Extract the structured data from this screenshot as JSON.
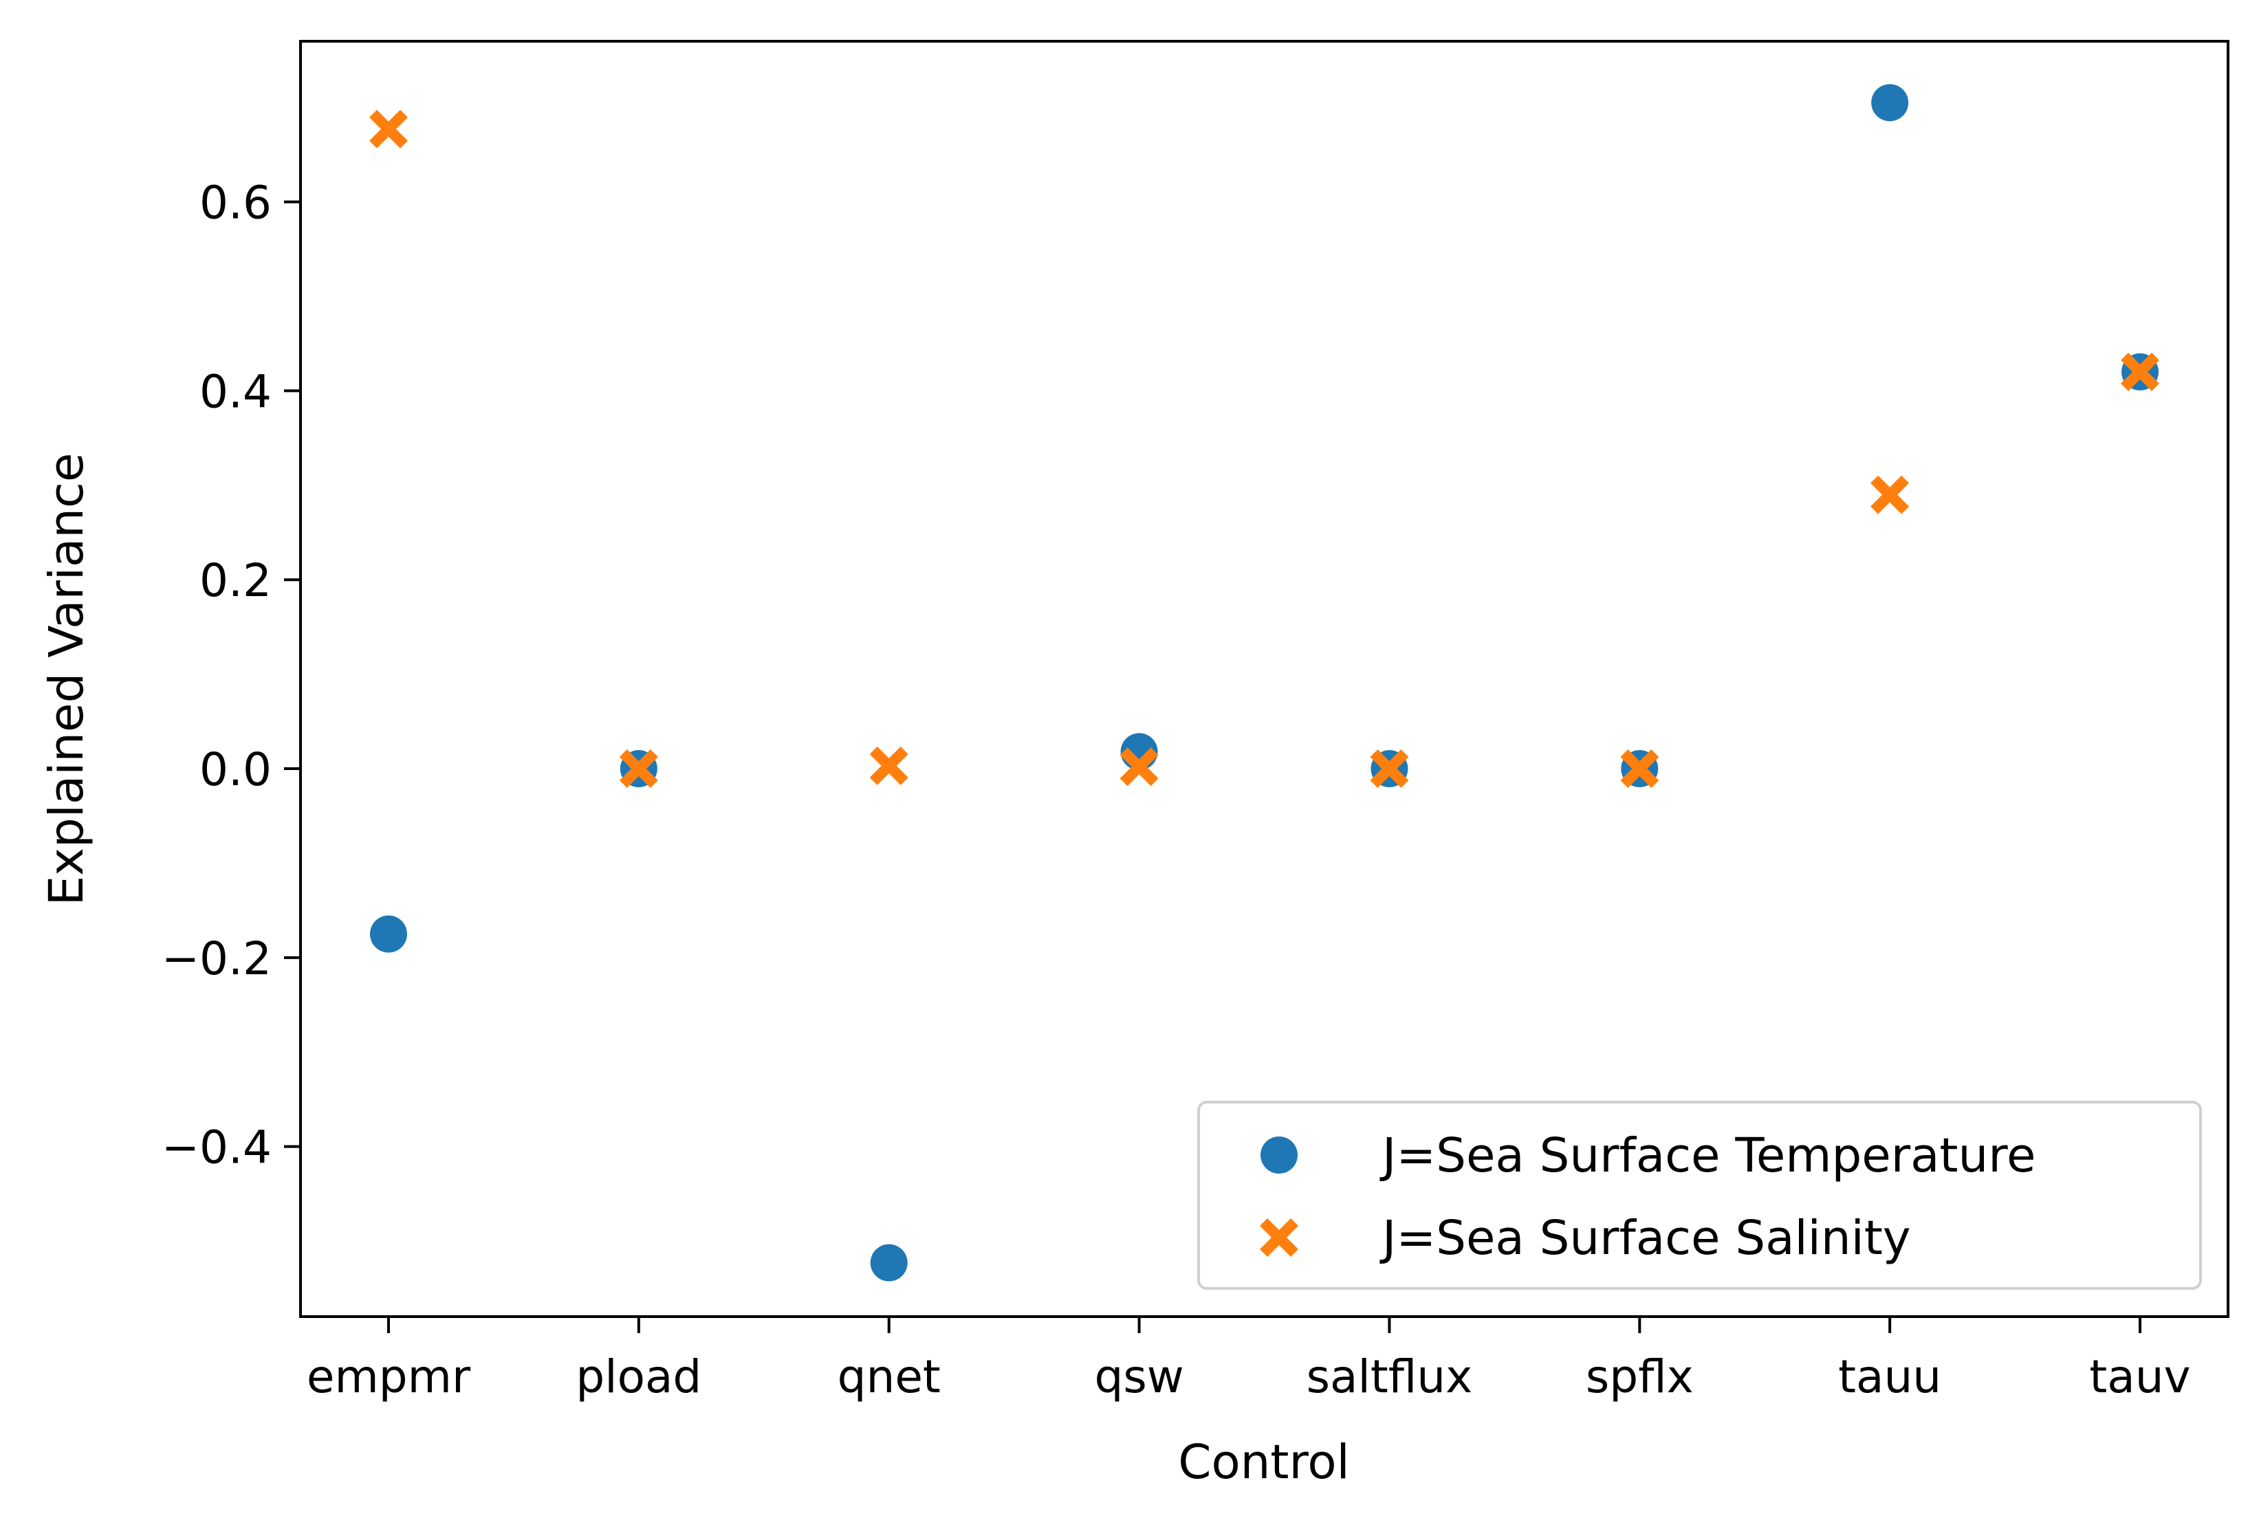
{
  "chart_data": {
    "type": "scatter",
    "title": "",
    "xlabel": "Control",
    "ylabel": "Explained Variance",
    "categories": [
      "empmr",
      "pload",
      "qnet",
      "qsw",
      "saltflux",
      "spflx",
      "tauu",
      "tauv"
    ],
    "ylim": [
      -0.58,
      0.77
    ],
    "yticks": [
      -0.4,
      -0.2,
      0.0,
      0.2,
      0.4,
      0.6
    ],
    "ytick_labels": [
      "−0.4",
      "−0.2",
      "0.0",
      "0.2",
      "0.4",
      "0.6"
    ],
    "grid": false,
    "legend_position": "lower-right",
    "series": [
      {
        "name": "J=Sea Surface Temperature",
        "marker": "circle",
        "color": "#1f77b4",
        "values": [
          -0.175,
          0.0,
          -0.523,
          0.018,
          0.0,
          0.0,
          0.705,
          0.42
        ]
      },
      {
        "name": "J=Sea Surface Salinity",
        "marker": "x-filled",
        "color": "#ff7f0e",
        "values": [
          0.677,
          0.0,
          0.003,
          0.002,
          0.0,
          0.0,
          0.29,
          0.42
        ]
      }
    ]
  }
}
